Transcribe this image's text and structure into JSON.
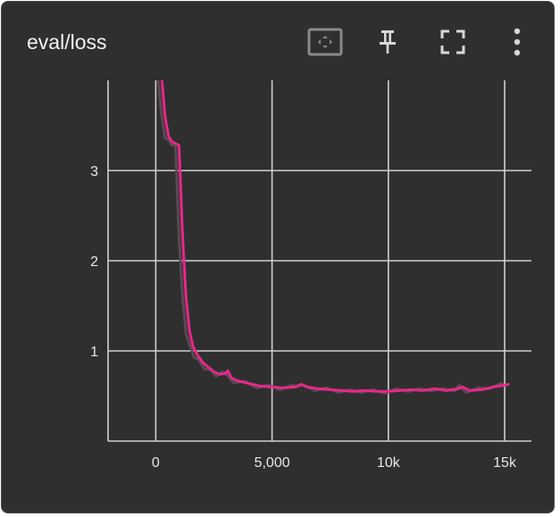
{
  "card": {
    "title": "eval/loss"
  },
  "toolbar": {
    "fit_domain_icon": "fit-domain-icon",
    "pin_icon": "pin-icon",
    "fullscreen_icon": "fullscreen-icon",
    "more_icon": "more-vertical-icon"
  },
  "colors": {
    "background": "#2f2f2f",
    "grid": "#d0d0d0",
    "series": "#e8278a",
    "raw_series": "#5a4a52"
  },
  "chart_data": {
    "type": "line",
    "title": "",
    "xlabel": "",
    "ylabel": "",
    "xlim": [
      -2050,
      16150
    ],
    "ylim": [
      0,
      4.0
    ],
    "x_ticks": [
      0,
      5000,
      10000,
      15000
    ],
    "x_tick_labels": [
      "0",
      "5,000",
      "10k",
      "15k"
    ],
    "y_ticks": [
      1,
      2,
      3
    ],
    "y_tick_labels": [
      "1",
      "2",
      "3"
    ],
    "grid": true,
    "legend": "none",
    "series": [
      {
        "smoothed": true,
        "x": [
          250,
          400,
          550,
          700,
          850,
          1000,
          1150,
          1300,
          1450,
          1600,
          1800,
          2000,
          2250,
          2500,
          2750,
          3000,
          3100,
          3250,
          3500,
          4000,
          4500,
          5000,
          5500,
          6000,
          6250,
          6500,
          7000,
          7500,
          8000,
          8500,
          9000,
          9500,
          10000,
          10500,
          11000,
          11500,
          12000,
          12500,
          13000,
          13200,
          13500,
          14000,
          14500,
          15000,
          15150
        ],
        "y": [
          4.05,
          3.6,
          3.38,
          3.32,
          3.3,
          3.28,
          2.3,
          1.6,
          1.22,
          1.05,
          0.95,
          0.88,
          0.82,
          0.77,
          0.74,
          0.75,
          0.78,
          0.7,
          0.67,
          0.64,
          0.61,
          0.6,
          0.59,
          0.6,
          0.63,
          0.6,
          0.58,
          0.57,
          0.56,
          0.55,
          0.56,
          0.55,
          0.55,
          0.56,
          0.57,
          0.56,
          0.58,
          0.56,
          0.58,
          0.6,
          0.56,
          0.57,
          0.6,
          0.62,
          0.63
        ]
      }
    ]
  }
}
